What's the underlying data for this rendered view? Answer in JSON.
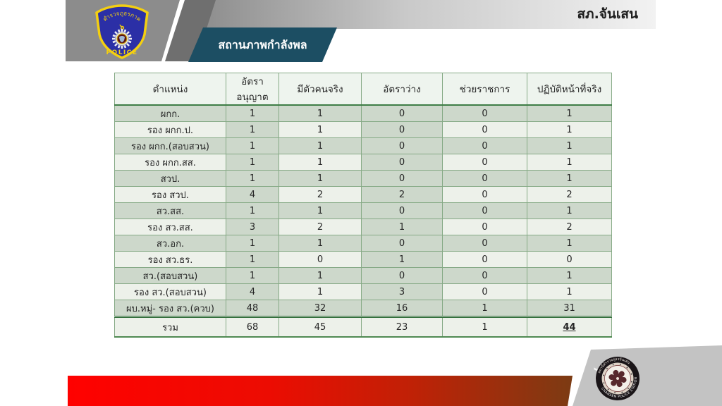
{
  "header_bar": {
    "station": "สภ.จันเสน"
  },
  "title_banner": {
    "text": "สถานภาพกำลังพล"
  },
  "badge": {
    "arc_text": "ตำรวจภูธรภาค",
    "region_number": "๖",
    "bottom_text": "POLICE"
  },
  "corner_emblem": {
    "top_arc_text": "สถานีตำรวจภูธรจันเสน",
    "bottom_arc_text": "CHANSEN POLICE STATION"
  },
  "table": {
    "headers": [
      "ตำแหน่ง",
      "อัตราอนุญาต",
      "มีตัวคนจริง",
      "อัตราว่าง",
      "ช่วยราชการ",
      "ปฏิบัติหน้าที่จริง"
    ],
    "rows": [
      {
        "position": "ผกก.",
        "values": [
          1,
          1,
          0,
          0,
          1
        ]
      },
      {
        "position": "รอง ผกก.ป.",
        "values": [
          1,
          1,
          0,
          0,
          1
        ]
      },
      {
        "position": "รอง ผกก.(สอบสวน)",
        "values": [
          1,
          1,
          0,
          0,
          1
        ]
      },
      {
        "position": "รอง ผกก.สส.",
        "values": [
          1,
          1,
          0,
          0,
          1
        ]
      },
      {
        "position": "สวป.",
        "values": [
          1,
          1,
          0,
          0,
          1
        ]
      },
      {
        "position": "รอง สวป.",
        "values": [
          4,
          2,
          2,
          0,
          2
        ]
      },
      {
        "position": "สว.สส.",
        "values": [
          1,
          1,
          0,
          0,
          1
        ]
      },
      {
        "position": "รอง สว.สส.",
        "values": [
          3,
          2,
          1,
          0,
          2
        ]
      },
      {
        "position": "สว.อก.",
        "values": [
          1,
          1,
          0,
          0,
          1
        ]
      },
      {
        "position": "รอง สว.ธร.",
        "values": [
          1,
          0,
          1,
          0,
          0
        ]
      },
      {
        "position": "สว.(สอบสวน)",
        "values": [
          1,
          1,
          0,
          0,
          1
        ]
      },
      {
        "position": "รอง สว.(สอบสวน)",
        "values": [
          4,
          1,
          3,
          0,
          1
        ]
      },
      {
        "position": "ผบ.หมู่- รอง สว.(ควบ)",
        "values": [
          48,
          32,
          16,
          1,
          31
        ]
      }
    ],
    "total": {
      "label": "รวม",
      "values": [
        68,
        45,
        23,
        1,
        44
      ]
    }
  },
  "colors": {
    "banner_teal": "#1c4e63",
    "table_border_green": "#86aa86",
    "row_dark": "#cdd8cb",
    "row_light": "#edf1ea",
    "bar_red_start": "#ff0100",
    "bar_red_end": "#7c3b13",
    "gray_block": "#8c8c8c"
  }
}
